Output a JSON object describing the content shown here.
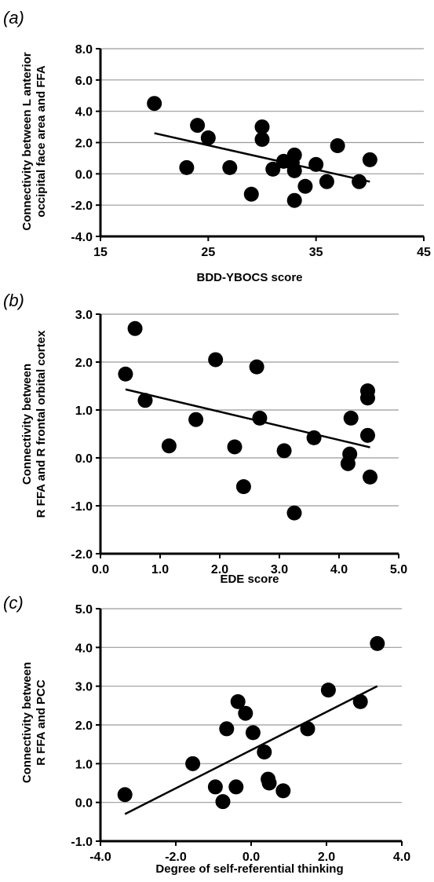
{
  "figure": {
    "chart_data": [
      {
        "type": "scatter",
        "panel_label": "(a)",
        "title": "",
        "xlabel": "BDD-YBOCS score",
        "ylabel_lines": [
          "Connectivity between L anterior",
          "occipital face area and FFA"
        ],
        "xlim": [
          15,
          45
        ],
        "ylim": [
          -4,
          8
        ],
        "xticks": [
          15,
          25,
          35,
          45
        ],
        "xtick_labels": [
          "15",
          "25",
          "35",
          "45"
        ],
        "yticks": [
          -4,
          -2,
          0,
          2,
          4,
          6,
          8
        ],
        "ytick_labels": [
          "-4.0",
          "-2.0",
          "0.0",
          "2.0",
          "4.0",
          "6.0",
          "8.0"
        ],
        "grid": "horizontal",
        "legend": "none",
        "points": [
          {
            "x": 20,
            "y": 4.5
          },
          {
            "x": 23,
            "y": 0.4
          },
          {
            "x": 24,
            "y": 3.1
          },
          {
            "x": 25,
            "y": 2.3
          },
          {
            "x": 27,
            "y": 0.4
          },
          {
            "x": 29,
            "y": -1.3
          },
          {
            "x": 30,
            "y": 3.0
          },
          {
            "x": 30,
            "y": 2.2
          },
          {
            "x": 31,
            "y": 0.3
          },
          {
            "x": 32,
            "y": 0.8
          },
          {
            "x": 32.8,
            "y": 0.7
          },
          {
            "x": 33,
            "y": 1.2
          },
          {
            "x": 33,
            "y": 0.2
          },
          {
            "x": 33,
            "y": -1.7
          },
          {
            "x": 34,
            "y": -0.8
          },
          {
            "x": 35,
            "y": 0.6
          },
          {
            "x": 36,
            "y": -0.5
          },
          {
            "x": 37,
            "y": 1.8
          },
          {
            "x": 39,
            "y": -0.5
          },
          {
            "x": 40,
            "y": 0.9
          }
        ],
        "trendline": [
          {
            "x": 20,
            "y": 2.6
          },
          {
            "x": 40,
            "y": -0.5
          }
        ]
      },
      {
        "type": "scatter",
        "panel_label": "(b)",
        "title": "",
        "xlabel": "EDE score",
        "ylabel_lines": [
          "Connectivity  between",
          "R FFA and R frontal orbital cortex"
        ],
        "xlim": [
          0,
          5
        ],
        "ylim": [
          -2,
          3
        ],
        "xticks": [
          0,
          1,
          2,
          3,
          4,
          5
        ],
        "xtick_labels": [
          "0.0",
          "1.0",
          "2.0",
          "3.0",
          "4.0",
          "5.0"
        ],
        "yticks": [
          -2,
          -1,
          0,
          1,
          2,
          3
        ],
        "ytick_labels": [
          "-2.0",
          "-1.0",
          "0.0",
          "1.0",
          "2.0",
          "3.0"
        ],
        "grid": "horizontal",
        "legend": "none",
        "points": [
          {
            "x": 0.42,
            "y": 1.75
          },
          {
            "x": 0.58,
            "y": 2.7
          },
          {
            "x": 0.75,
            "y": 1.2
          },
          {
            "x": 1.15,
            "y": 0.25
          },
          {
            "x": 1.6,
            "y": 0.8
          },
          {
            "x": 1.93,
            "y": 2.05
          },
          {
            "x": 2.25,
            "y": 0.23
          },
          {
            "x": 2.4,
            "y": -0.6
          },
          {
            "x": 2.62,
            "y": 1.9
          },
          {
            "x": 2.67,
            "y": 0.83
          },
          {
            "x": 3.08,
            "y": 0.15
          },
          {
            "x": 3.25,
            "y": -1.15
          },
          {
            "x": 3.58,
            "y": 0.42
          },
          {
            "x": 4.15,
            "y": -0.12
          },
          {
            "x": 4.18,
            "y": 0.08
          },
          {
            "x": 4.2,
            "y": 0.83
          },
          {
            "x": 4.48,
            "y": 1.4
          },
          {
            "x": 4.48,
            "y": 1.25
          },
          {
            "x": 4.48,
            "y": 0.47
          },
          {
            "x": 4.52,
            "y": -0.4
          }
        ],
        "trendline": [
          {
            "x": 0.42,
            "y": 1.43
          },
          {
            "x": 4.52,
            "y": 0.22
          }
        ]
      },
      {
        "type": "scatter",
        "panel_label": "(c)",
        "title": "",
        "xlabel": "Degree of self-referential thinking",
        "ylabel_lines": [
          "Connectivity between",
          "R FFA and PCC"
        ],
        "xlim": [
          -4,
          4
        ],
        "ylim": [
          -1,
          5
        ],
        "xticks": [
          -4,
          -2,
          0,
          2,
          4
        ],
        "xtick_labels": [
          "-4.0",
          "-2.0",
          "0.0",
          "2.0",
          "4.0"
        ],
        "yticks": [
          -1,
          0,
          1,
          2,
          3,
          4,
          5
        ],
        "ytick_labels": [
          "-1.0",
          "0.0",
          "1.0",
          "2.0",
          "3.0",
          "4.0",
          "5.0"
        ],
        "grid": "horizontal",
        "legend": "none",
        "points": [
          {
            "x": -3.35,
            "y": 0.2
          },
          {
            "x": -1.55,
            "y": 1.0
          },
          {
            "x": -0.95,
            "y": 0.4
          },
          {
            "x": -0.75,
            "y": 0.02
          },
          {
            "x": -0.65,
            "y": 1.9
          },
          {
            "x": -0.4,
            "y": 0.4
          },
          {
            "x": -0.35,
            "y": 2.6
          },
          {
            "x": -0.15,
            "y": 2.3
          },
          {
            "x": 0.05,
            "y": 1.8
          },
          {
            "x": 0.35,
            "y": 1.3
          },
          {
            "x": 0.45,
            "y": 0.6
          },
          {
            "x": 0.48,
            "y": 0.5
          },
          {
            "x": 0.85,
            "y": 0.3
          },
          {
            "x": 1.5,
            "y": 1.9
          },
          {
            "x": 2.05,
            "y": 2.9
          },
          {
            "x": 2.9,
            "y": 2.6
          },
          {
            "x": 3.35,
            "y": 4.1
          }
        ],
        "trendline": [
          {
            "x": -3.35,
            "y": -0.3
          },
          {
            "x": 3.35,
            "y": 3.0
          }
        ]
      }
    ]
  }
}
